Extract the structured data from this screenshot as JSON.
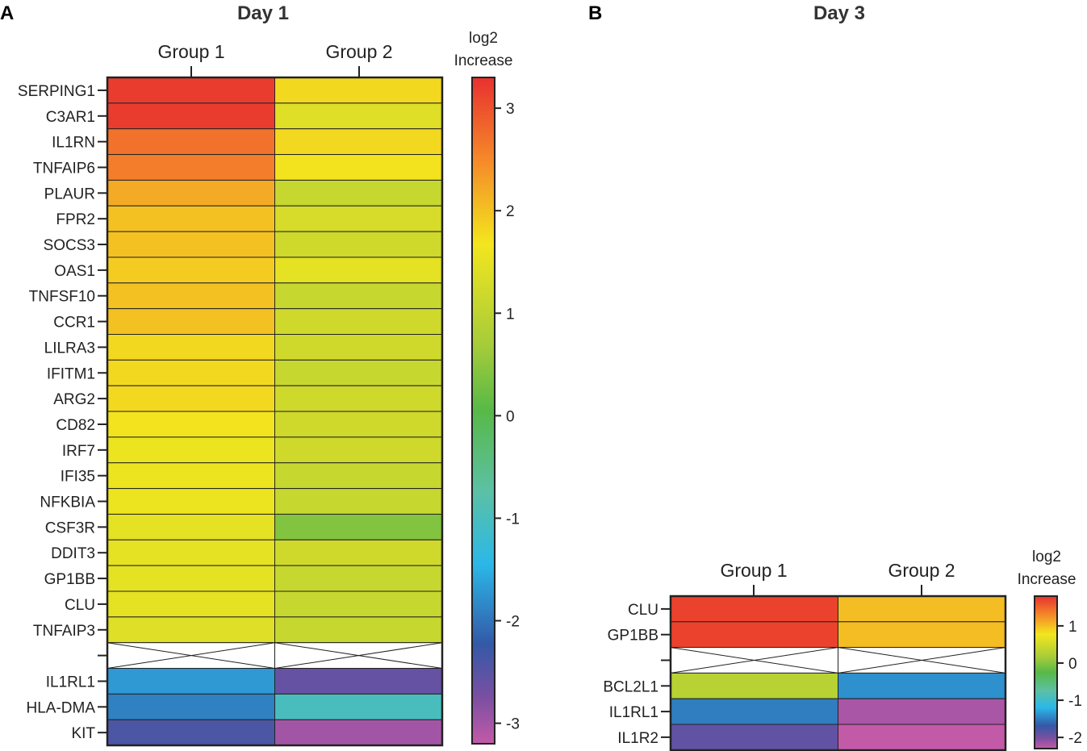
{
  "chart_data": [
    {
      "type": "heatmap",
      "panel": "A",
      "title": "Day 1",
      "columns": [
        "Group 1",
        "Group 2"
      ],
      "colorbar_label": [
        "log2",
        "Increase"
      ],
      "colorbar_range": [
        -3.2,
        3.3
      ],
      "colorbar_ticks": [
        3,
        2,
        1,
        0,
        -1,
        -2,
        -3
      ],
      "rows": [
        {
          "gene": "SERPING1",
          "values": [
            3.2,
            1.8
          ]
        },
        {
          "gene": "C3AR1",
          "values": [
            3.2,
            1.4
          ]
        },
        {
          "gene": "IL1RN",
          "values": [
            2.7,
            1.8
          ]
        },
        {
          "gene": "TNFAIP6",
          "values": [
            2.6,
            1.7
          ]
        },
        {
          "gene": "PLAUR",
          "values": [
            2.2,
            1.1
          ]
        },
        {
          "gene": "FPR2",
          "values": [
            2.0,
            1.3
          ]
        },
        {
          "gene": "SOCS3",
          "values": [
            2.0,
            1.2
          ]
        },
        {
          "gene": "OAS1",
          "values": [
            1.9,
            1.5
          ]
        },
        {
          "gene": "TNFSF10",
          "values": [
            2.0,
            1.1
          ]
        },
        {
          "gene": "CCR1",
          "values": [
            2.0,
            1.2
          ]
        },
        {
          "gene": "LILRA3",
          "values": [
            1.8,
            1.2
          ]
        },
        {
          "gene": "IFITM1",
          "values": [
            1.8,
            1.1
          ]
        },
        {
          "gene": "ARG2",
          "values": [
            1.8,
            1.2
          ]
        },
        {
          "gene": "CD82",
          "values": [
            1.7,
            1.2
          ]
        },
        {
          "gene": "IRF7",
          "values": [
            1.6,
            1.2
          ]
        },
        {
          "gene": "IFI35",
          "values": [
            1.6,
            1.1
          ]
        },
        {
          "gene": "NFKBIA",
          "values": [
            1.6,
            1.1
          ]
        },
        {
          "gene": "CSF3R",
          "values": [
            1.5,
            0.4
          ]
        },
        {
          "gene": "DDIT3",
          "values": [
            1.5,
            1.2
          ]
        },
        {
          "gene": "GP1BB",
          "values": [
            1.5,
            1.1
          ]
        },
        {
          "gene": "CLU",
          "values": [
            1.5,
            1.1
          ]
        },
        {
          "gene": "TNFAIP3",
          "values": [
            1.4,
            1.1
          ]
        },
        {
          "gene": "",
          "values": [
            null,
            null
          ]
        },
        {
          "gene": "IL1RL1",
          "values": [
            -1.7,
            -2.6
          ]
        },
        {
          "gene": "HLA-DMA",
          "values": [
            -1.9,
            -1.0
          ]
        },
        {
          "gene": "KIT",
          "values": [
            -2.4,
            -3.0
          ]
        }
      ]
    },
    {
      "type": "heatmap",
      "panel": "B",
      "title": "Day 3",
      "columns": [
        "Group 1",
        "Group 2"
      ],
      "colorbar_label": [
        "log2",
        "Increase"
      ],
      "colorbar_range": [
        -2.3,
        1.8
      ],
      "colorbar_ticks": [
        1,
        0,
        -1,
        -2
      ],
      "rows": [
        {
          "gene": "CLU",
          "values": [
            1.7,
            1.0
          ]
        },
        {
          "gene": "GP1BB",
          "values": [
            1.7,
            1.0
          ]
        },
        {
          "gene": "",
          "values": [
            null,
            null
          ]
        },
        {
          "gene": "BCL2L1",
          "values": [
            0.3,
            -1.4
          ]
        },
        {
          "gene": "IL1RL1",
          "values": [
            -1.5,
            -2.2
          ]
        },
        {
          "gene": "IL1R2",
          "values": [
            -1.9,
            -2.3
          ]
        }
      ]
    }
  ]
}
